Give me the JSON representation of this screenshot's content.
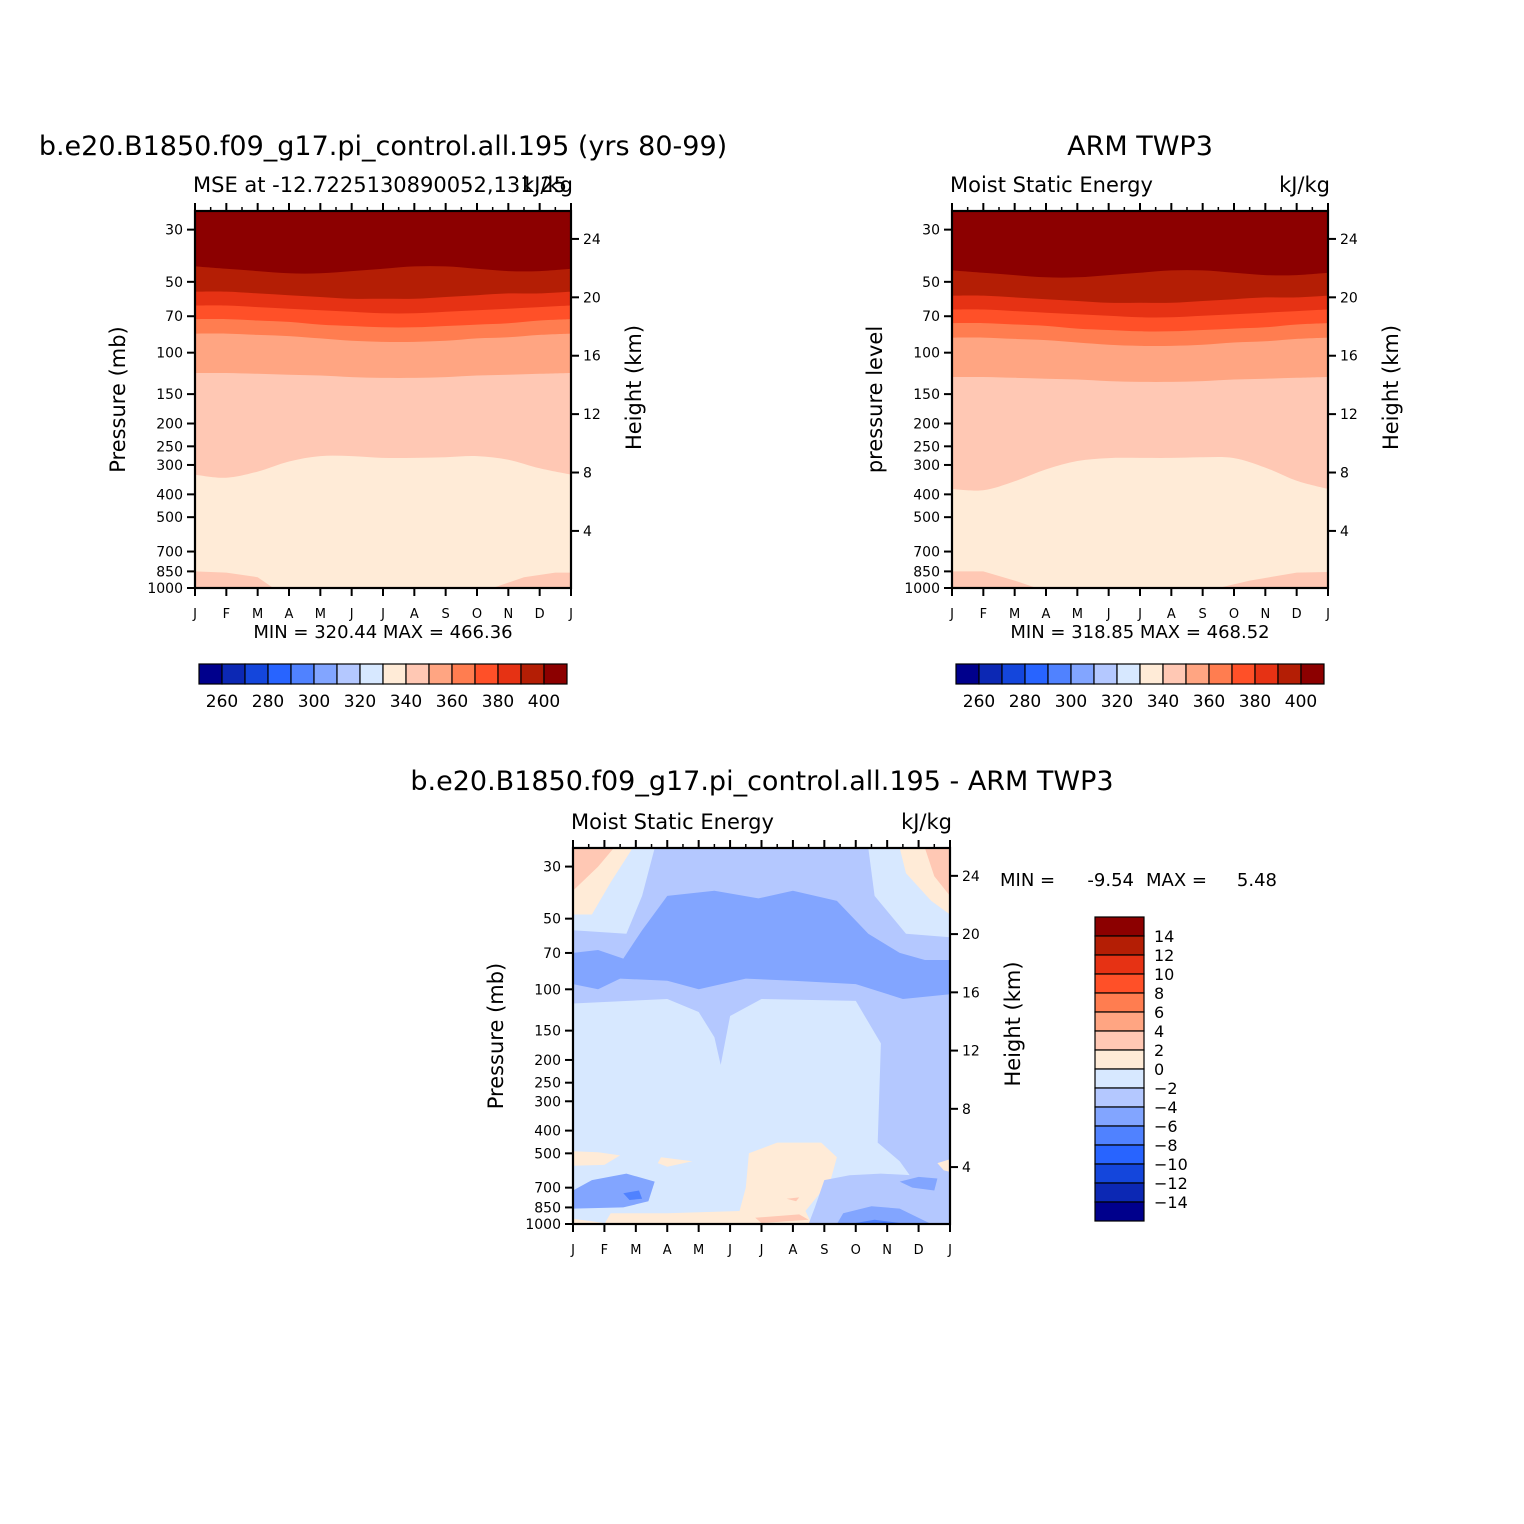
{
  "palette": {
    "mse": [
      "#00008c",
      "#0c28b4",
      "#1446dc",
      "#2864ff",
      "#5082ff",
      "#82a5ff",
      "#b4c8ff",
      "#d7e8ff",
      "#ffebd7",
      "#ffc8b4",
      "#ffa582",
      "#ff7d50",
      "#ff5028",
      "#e63214",
      "#b41e05",
      "#8c0000"
    ],
    "diff": [
      "#00008c",
      "#0c28b4",
      "#1446dc",
      "#2864ff",
      "#5082ff",
      "#82a5ff",
      "#b4c8ff",
      "#d7e8ff",
      "#ffebd7",
      "#ffc8b4",
      "#ffa582",
      "#ff7d50",
      "#ff5028",
      "#e63214",
      "#b41e05",
      "#8c0000"
    ]
  },
  "chart_data": [
    {
      "type": "heatmap",
      "panel": "model",
      "title": "b.e20.B1850.f09_g17.pi_control.all.195 (yrs 80-99)",
      "left_string": "MSE at -12.7225130890052,131.25",
      "right_string": "kJ/kg",
      "ylabel": "Pressure (mb)",
      "ylabel_right": "Height (km)",
      "x_ticks": [
        "J",
        "F",
        "M",
        "A",
        "M",
        "J",
        "J",
        "A",
        "S",
        "O",
        "N",
        "D",
        "J"
      ],
      "y_ticks": [
        30,
        50,
        70,
        100,
        150,
        200,
        250,
        300,
        400,
        500,
        700,
        850,
        1000
      ],
      "y_right_ticks": [
        24,
        20,
        16,
        12,
        8,
        4
      ],
      "ylim": [
        1000,
        25
      ],
      "stats": "MIN = 320.44 MAX = 466.36",
      "min": 320.44,
      "max": 466.36,
      "levels": [
        250,
        260,
        270,
        280,
        290,
        300,
        310,
        320,
        330,
        340,
        350,
        360,
        370,
        380,
        390,
        400,
        410
      ],
      "colorbar_labels": [
        "260",
        "280",
        "300",
        "320",
        "340",
        "360",
        "380",
        "400"
      ],
      "contour_pressures": {
        "400": [
          43,
          44,
          45,
          46,
          46,
          45,
          44,
          43,
          43,
          44,
          45,
          45,
          44
        ],
        "390": [
          55,
          55,
          56,
          57,
          58,
          59,
          59,
          59,
          58,
          57,
          56,
          56,
          55
        ],
        "380": [
          63,
          63,
          64,
          65,
          66,
          67,
          68,
          68,
          67,
          66,
          65,
          64,
          63
        ],
        "370": [
          72,
          72,
          73,
          74,
          76,
          77,
          78,
          78,
          77,
          76,
          75,
          73,
          72
        ],
        "360": [
          83,
          83,
          84,
          85,
          87,
          89,
          90,
          90,
          89,
          87,
          86,
          84,
          83
        ],
        "350": [
          122,
          122,
          123,
          124,
          125,
          127,
          128,
          128,
          127,
          125,
          124,
          123,
          122
        ],
        "340": [
          330,
          340,
          320,
          290,
          275,
          275,
          280,
          280,
          278,
          275,
          285,
          310,
          330
        ],
        "330": [
          880,
          880,
          790,
          650,
          530,
          510,
          505,
          505,
          510,
          540,
          660,
          880,
          880
        ],
        "320": null
      }
    },
    {
      "type": "heatmap",
      "panel": "obs",
      "title": "ARM TWP3",
      "left_string": "Moist Static Energy",
      "right_string": "kJ/kg",
      "ylabel": "pressure level",
      "ylabel_right": "Height (km)",
      "x_ticks": [
        "J",
        "F",
        "M",
        "A",
        "M",
        "J",
        "J",
        "A",
        "S",
        "O",
        "N",
        "D",
        "J"
      ],
      "y_ticks": [
        30,
        50,
        70,
        100,
        150,
        200,
        250,
        300,
        400,
        500,
        700,
        850,
        1000
      ],
      "y_right_ticks": [
        24,
        20,
        16,
        12,
        8,
        4
      ],
      "ylim": [
        1000,
        25
      ],
      "stats": "MIN = 318.85 MAX = 468.52",
      "min": 318.85,
      "max": 468.52,
      "levels": [
        250,
        260,
        270,
        280,
        290,
        300,
        310,
        320,
        330,
        340,
        350,
        360,
        370,
        380,
        390,
        400,
        410
      ],
      "colorbar_labels": [
        "260",
        "280",
        "300",
        "320",
        "340",
        "360",
        "380",
        "400"
      ]
    },
    {
      "type": "heatmap",
      "panel": "difference",
      "title": "b.e20.B1850.f09_g17.pi_control.all.195 - ARM TWP3",
      "left_string": "Moist Static Energy",
      "right_string": "kJ/kg",
      "ylabel": "Pressure (mb)",
      "ylabel_right": "Height (km)",
      "x_ticks": [
        "J",
        "F",
        "M",
        "A",
        "M",
        "J",
        "J",
        "A",
        "S",
        "O",
        "N",
        "D",
        "J"
      ],
      "y_ticks": [
        30,
        50,
        70,
        100,
        150,
        200,
        250,
        300,
        400,
        500,
        700,
        850,
        1000
      ],
      "y_right_ticks": [
        24,
        20,
        16,
        12,
        8,
        4
      ],
      "ylim": [
        1000,
        25
      ],
      "stats_min_label": "MIN =",
      "stats_min": "-9.54",
      "stats_max_label": "MAX =",
      "stats_max": "5.48",
      "min": -9.54,
      "max": 5.48,
      "levels": [
        -16,
        -14,
        -12,
        -10,
        -8,
        -6,
        -4,
        -2,
        0,
        2,
        4,
        6,
        8,
        10,
        12,
        14,
        16
      ],
      "colorbar_labels": [
        "14",
        "12",
        "10",
        "8",
        "6",
        "4",
        "2",
        "0",
        "−2",
        "−4",
        "−6",
        "−8",
        "−10",
        "−12",
        "−14"
      ]
    }
  ]
}
